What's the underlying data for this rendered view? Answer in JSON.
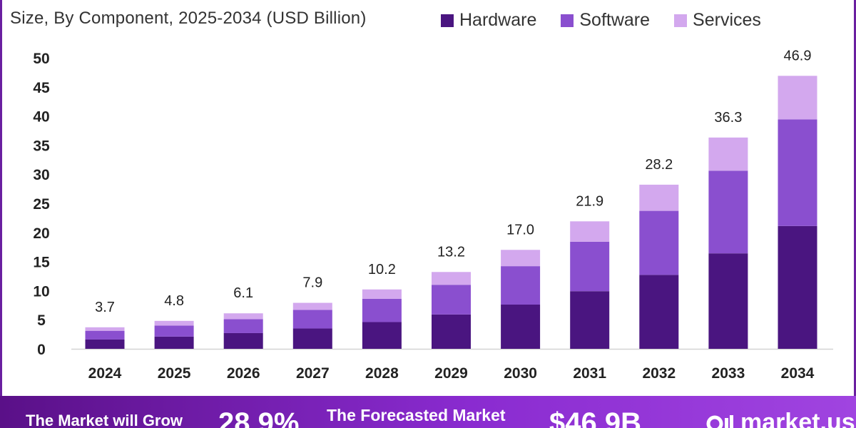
{
  "chart_data": {
    "type": "bar",
    "stacked": true,
    "title_subtitle": "Size, By Component, 2025-2034 (USD Billion)",
    "categories": [
      "2024",
      "2025",
      "2026",
      "2027",
      "2028",
      "2029",
      "2030",
      "2031",
      "2032",
      "2033",
      "2034"
    ],
    "series": [
      {
        "name": "Hardware",
        "color": "#4a1580",
        "values": [
          1.6,
          2.1,
          2.7,
          3.5,
          4.6,
          5.9,
          7.6,
          9.9,
          12.7,
          16.4,
          21.1
        ]
      },
      {
        "name": "Software",
        "color": "#8a4fcf",
        "values": [
          1.5,
          1.9,
          2.4,
          3.2,
          4.0,
          5.1,
          6.6,
          8.5,
          11.0,
          14.2,
          18.3
        ]
      },
      {
        "name": "Services",
        "color": "#d3a8ee",
        "values": [
          0.6,
          0.8,
          1.0,
          1.2,
          1.6,
          2.2,
          2.8,
          3.5,
          4.5,
          5.7,
          7.5
        ]
      }
    ],
    "totals": [
      "3.7",
      "4.8",
      "6.1",
      "7.9",
      "10.2",
      "13.2",
      "17.0",
      "21.9",
      "28.2",
      "36.3",
      "46.9"
    ],
    "yticks": [
      "0",
      "5",
      "10",
      "15",
      "20",
      "25",
      "30",
      "35",
      "40",
      "45",
      "50"
    ],
    "ylim": [
      0,
      50
    ],
    "xlabel": "",
    "ylabel": "",
    "legend_position": "top-right"
  },
  "banner": {
    "grow_text": "The Market will Grow",
    "cagr": "28.9%",
    "forecast_text": "The Forecasted Market",
    "forecast_value": "$46.9B",
    "brand": "market.us"
  }
}
